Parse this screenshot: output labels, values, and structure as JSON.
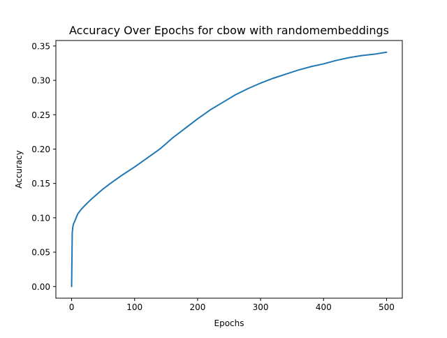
{
  "chart_data": {
    "type": "line",
    "title": "Accuracy Over Epochs for cbow with randomembeddings",
    "xlabel": "Epochs",
    "ylabel": "Accuracy",
    "xlim": [
      -25,
      525
    ],
    "ylim": [
      -0.017,
      0.358
    ],
    "xticks": [
      0,
      100,
      200,
      300,
      400,
      500
    ],
    "xtick_labels": [
      "0",
      "100",
      "200",
      "300",
      "400",
      "500"
    ],
    "yticks": [
      0.0,
      0.05,
      0.1,
      0.15,
      0.2,
      0.25,
      0.3,
      0.35
    ],
    "ytick_labels": [
      "0.00",
      "0.05",
      "0.10",
      "0.15",
      "0.20",
      "0.25",
      "0.30",
      "0.35"
    ],
    "grid": false,
    "legend": "none",
    "series": [
      {
        "color": "#1f77b4",
        "x": [
          0,
          1,
          2,
          3,
          5,
          8,
          10,
          15,
          20,
          30,
          40,
          50,
          60,
          80,
          100,
          120,
          140,
          160,
          180,
          200,
          220,
          240,
          260,
          280,
          300,
          320,
          340,
          360,
          380,
          400,
          420,
          440,
          460,
          480,
          500
        ],
        "y": [
          0.0,
          0.079,
          0.087,
          0.091,
          0.095,
          0.102,
          0.106,
          0.112,
          0.117,
          0.126,
          0.134,
          0.142,
          0.149,
          0.162,
          0.174,
          0.187,
          0.2,
          0.216,
          0.23,
          0.244,
          0.257,
          0.268,
          0.279,
          0.288,
          0.296,
          0.303,
          0.309,
          0.315,
          0.32,
          0.324,
          0.329,
          0.333,
          0.336,
          0.338,
          0.341
        ]
      }
    ]
  }
}
